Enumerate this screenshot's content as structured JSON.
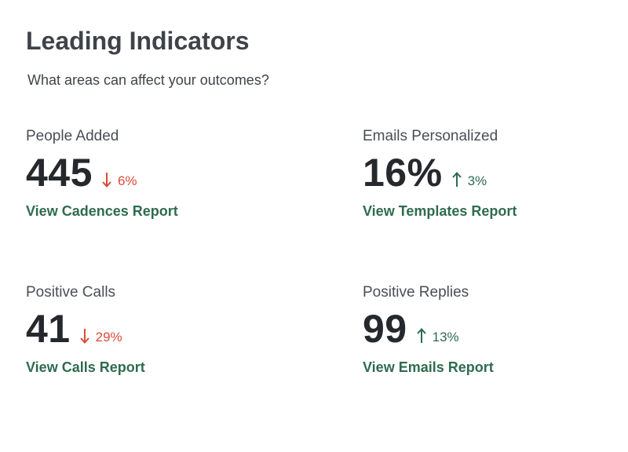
{
  "header": {
    "title": "Leading Indicators",
    "subtitle": "What areas can affect your outcomes?"
  },
  "colors": {
    "down": "#d94b38",
    "up": "#2e6b4f",
    "link": "#2f6b4f"
  },
  "metrics": [
    {
      "label": "People Added",
      "value": "445",
      "direction": "down",
      "arrow_icon": "arrow-down-icon",
      "change": "6%",
      "link": "View Cadences Report"
    },
    {
      "label": "Emails Personalized",
      "value": "16%",
      "direction": "up",
      "arrow_icon": "arrow-up-icon",
      "change": "3%",
      "link": "View Templates Report"
    },
    {
      "label": "Positive Calls",
      "value": "41",
      "direction": "down",
      "arrow_icon": "arrow-down-icon",
      "change": "29%",
      "link": "View Calls Report"
    },
    {
      "label": "Positive Replies",
      "value": "99",
      "direction": "up",
      "arrow_icon": "arrow-up-icon",
      "change": "13%",
      "link": "View Emails Report"
    }
  ]
}
